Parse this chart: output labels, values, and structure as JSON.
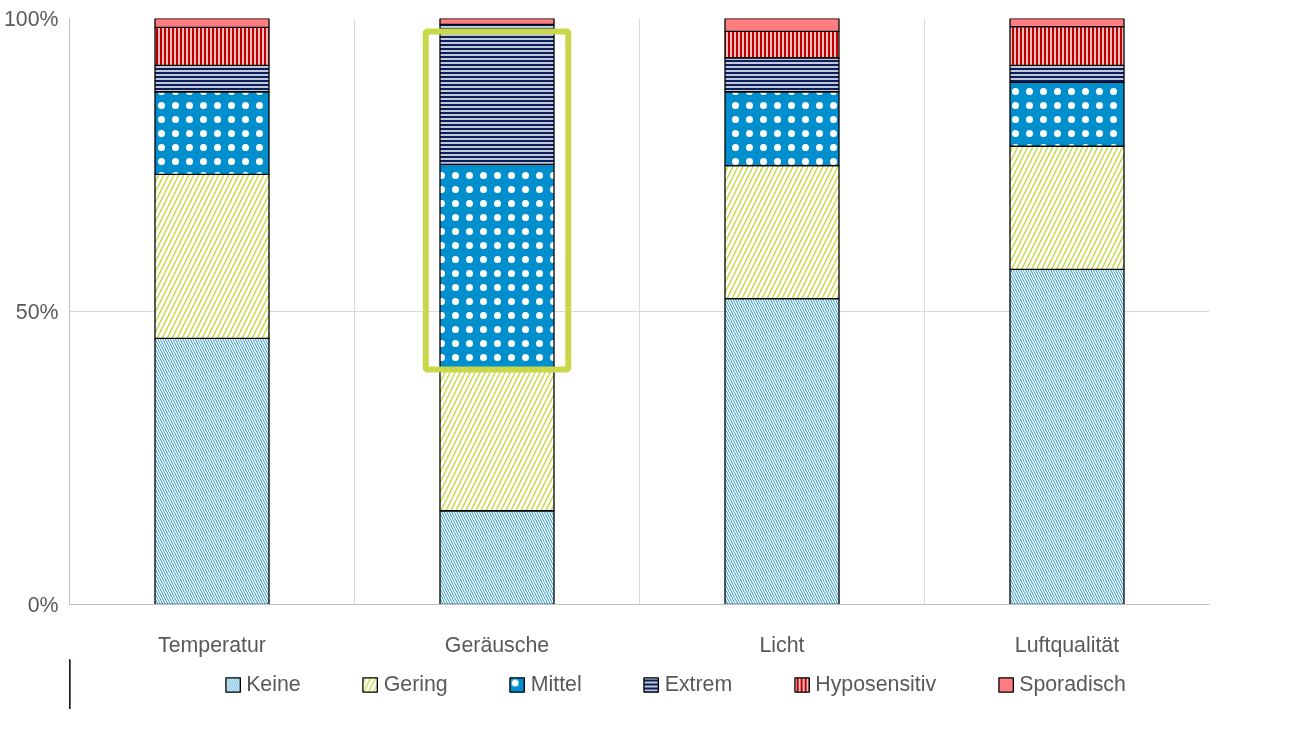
{
  "chart_data": {
    "type": "bar",
    "stacked": true,
    "categories": [
      "Temperatur",
      "Geräusche",
      "Licht",
      "Luftqualität"
    ],
    "series": [
      {
        "name": "Keine",
        "color": "#0a8fcc",
        "values": [
          45.4,
          16.0,
          52.2,
          57.2
        ]
      },
      {
        "name": "Gering",
        "color": "#c8d84a",
        "values": [
          28.0,
          24.1,
          22.7,
          21.0
        ]
      },
      {
        "name": "Mittel",
        "color": "#008fcc",
        "values": [
          14.1,
          35.0,
          12.6,
          10.9
        ]
      },
      {
        "name": "Extrem",
        "color": "#0a1f5c",
        "values": [
          4.5,
          23.9,
          5.8,
          2.9
        ]
      },
      {
        "name": "Hyposensitiv",
        "color": "#c00000",
        "values": [
          6.5,
          null,
          4.5,
          6.6
        ]
      },
      {
        "name": "Sporadisch",
        "color": "#ff7c80",
        "values": [
          1.5,
          1.0,
          2.2,
          1.4
        ]
      }
    ],
    "ylim": [
      0,
      100
    ],
    "yticks": [
      {
        "value": 0,
        "label": "0%"
      },
      {
        "value": 50,
        "label": "50%"
      },
      {
        "value": 100,
        "label": "100%"
      }
    ],
    "grid": true,
    "legend": "bottom"
  }
}
